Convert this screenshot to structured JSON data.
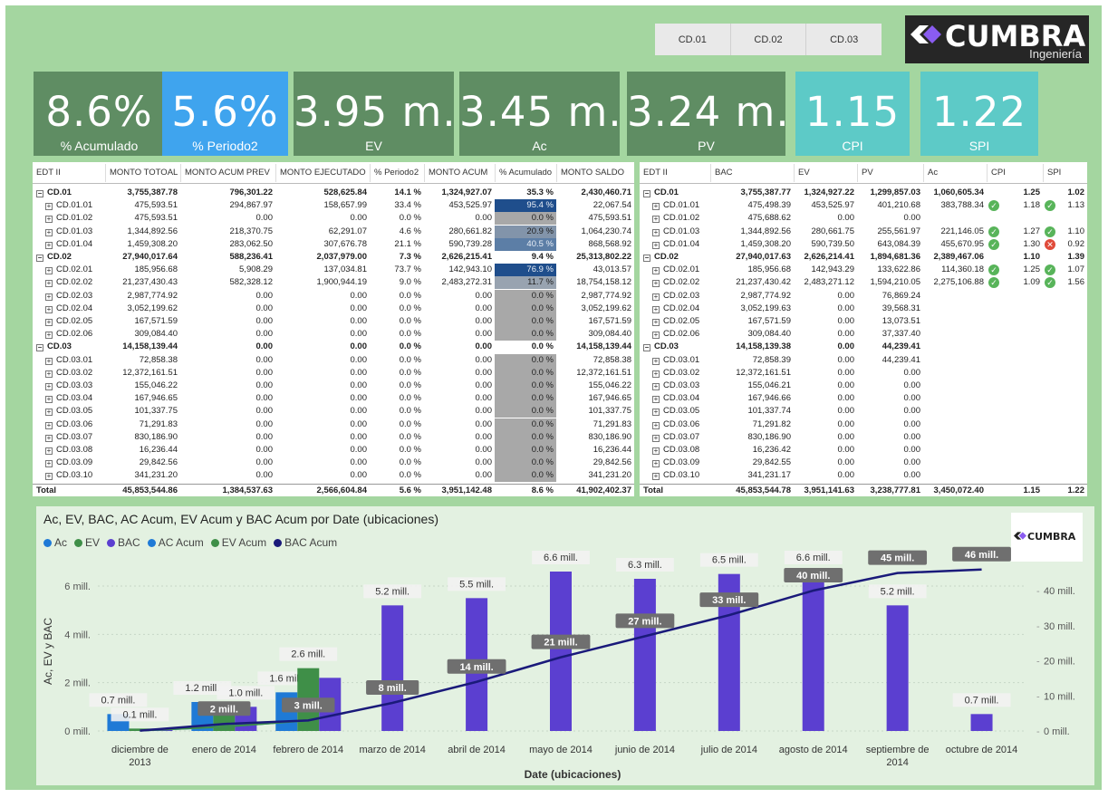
{
  "slicer": [
    "CD.01",
    "CD.02",
    "CD.03"
  ],
  "logo": {
    "name": "CUMBRA",
    "sub": "Ingeniería",
    "mini": "CUMBRA"
  },
  "cards": [
    {
      "value": "8.6%",
      "label": "% Acumulado",
      "color": "#5f8d63"
    },
    {
      "value": "5.6%",
      "label": "% Periodo2",
      "color": "#3fa4ee"
    },
    {
      "value": "3.95 m...",
      "label": "EV",
      "color": "#5f8d63"
    },
    {
      "value": "3.45 m...",
      "label": "Ac",
      "color": "#5f8d63"
    },
    {
      "value": "3.24 m...",
      "label": "PV",
      "color": "#5f8d63"
    },
    {
      "value": "1.15",
      "label": "CPI",
      "color": "#5dcac7"
    },
    {
      "value": "1.22",
      "label": "SPI",
      "color": "#5dcac7"
    }
  ],
  "table1": {
    "headers": [
      "EDT II",
      "MONTO TOTOAL",
      "MONTO ACUM PREV",
      "MONTO EJECUTADO",
      "% Periodo2",
      "MONTO ACUM",
      "% Acumulado",
      "MONTO SALDO"
    ],
    "rows": [
      {
        "level": 0,
        "expand": "−",
        "cells": [
          "CD.01",
          "3,755,387.78",
          "796,301.22",
          "528,625.84",
          "14.1 %",
          "1,324,927.07",
          "35.3 %",
          "2,430,460.71"
        ],
        "pct": 35.3
      },
      {
        "level": 1,
        "expand": "+",
        "cells": [
          "CD.01.01",
          "475,593.51",
          "294,867.97",
          "158,657.99",
          "33.4 %",
          "453,525.97",
          "95.4 %",
          "22,067.54"
        ],
        "pct": 95.4
      },
      {
        "level": 1,
        "expand": "+",
        "cells": [
          "CD.01.02",
          "475,593.51",
          "0.00",
          "0.00",
          "0.0 %",
          "0.00",
          "0.0 %",
          "475,593.51"
        ],
        "pct": 0
      },
      {
        "level": 1,
        "expand": "+",
        "cells": [
          "CD.01.03",
          "1,344,892.56",
          "218,370.75",
          "62,291.07",
          "4.6 %",
          "280,661.82",
          "20.9 %",
          "1,064,230.74"
        ],
        "pct": 20.9
      },
      {
        "level": 1,
        "expand": "+",
        "cells": [
          "CD.01.04",
          "1,459,308.20",
          "283,062.50",
          "307,676.78",
          "21.1 %",
          "590,739.28",
          "40.5 %",
          "868,568.92"
        ],
        "pct": 40.5
      },
      {
        "level": 0,
        "expand": "−",
        "cells": [
          "CD.02",
          "27,940,017.64",
          "588,236.41",
          "2,037,979.00",
          "7.3 %",
          "2,626,215.41",
          "9.4 %",
          "25,313,802.22"
        ],
        "pct": 9.4
      },
      {
        "level": 1,
        "expand": "+",
        "cells": [
          "CD.02.01",
          "185,956.68",
          "5,908.29",
          "137,034.81",
          "73.7 %",
          "142,943.10",
          "76.9 %",
          "43,013.57"
        ],
        "pct": 76.9
      },
      {
        "level": 1,
        "expand": "+",
        "cells": [
          "CD.02.02",
          "21,237,430.43",
          "582,328.12",
          "1,900,944.19",
          "9.0 %",
          "2,483,272.31",
          "11.7 %",
          "18,754,158.12"
        ],
        "pct": 11.7
      },
      {
        "level": 1,
        "expand": "+",
        "cells": [
          "CD.02.03",
          "2,987,774.92",
          "0.00",
          "0.00",
          "0.0 %",
          "0.00",
          "0.0 %",
          "2,987,774.92"
        ],
        "pct": 0
      },
      {
        "level": 1,
        "expand": "+",
        "cells": [
          "CD.02.04",
          "3,052,199.62",
          "0.00",
          "0.00",
          "0.0 %",
          "0.00",
          "0.0 %",
          "3,052,199.62"
        ],
        "pct": 0
      },
      {
        "level": 1,
        "expand": "+",
        "cells": [
          "CD.02.05",
          "167,571.59",
          "0.00",
          "0.00",
          "0.0 %",
          "0.00",
          "0.0 %",
          "167,571.59"
        ],
        "pct": 0
      },
      {
        "level": 1,
        "expand": "+",
        "cells": [
          "CD.02.06",
          "309,084.40",
          "0.00",
          "0.00",
          "0.0 %",
          "0.00",
          "0.0 %",
          "309,084.40"
        ],
        "pct": 0
      },
      {
        "level": 0,
        "expand": "−",
        "cells": [
          "CD.03",
          "14,158,139.44",
          "0.00",
          "0.00",
          "0.0 %",
          "0.00",
          "0.0 %",
          "14,158,139.44"
        ],
        "pct": 0
      },
      {
        "level": 1,
        "expand": "+",
        "cells": [
          "CD.03.01",
          "72,858.38",
          "0.00",
          "0.00",
          "0.0 %",
          "0.00",
          "0.0 %",
          "72,858.38"
        ],
        "pct": 0
      },
      {
        "level": 1,
        "expand": "+",
        "cells": [
          "CD.03.02",
          "12,372,161.51",
          "0.00",
          "0.00",
          "0.0 %",
          "0.00",
          "0.0 %",
          "12,372,161.51"
        ],
        "pct": 0
      },
      {
        "level": 1,
        "expand": "+",
        "cells": [
          "CD.03.03",
          "155,046.22",
          "0.00",
          "0.00",
          "0.0 %",
          "0.00",
          "0.0 %",
          "155,046.22"
        ],
        "pct": 0
      },
      {
        "level": 1,
        "expand": "+",
        "cells": [
          "CD.03.04",
          "167,946.65",
          "0.00",
          "0.00",
          "0.0 %",
          "0.00",
          "0.0 %",
          "167,946.65"
        ],
        "pct": 0
      },
      {
        "level": 1,
        "expand": "+",
        "cells": [
          "CD.03.05",
          "101,337.75",
          "0.00",
          "0.00",
          "0.0 %",
          "0.00",
          "0.0 %",
          "101,337.75"
        ],
        "pct": 0
      },
      {
        "level": 1,
        "expand": "+",
        "cells": [
          "CD.03.06",
          "71,291.83",
          "0.00",
          "0.00",
          "0.0 %",
          "0.00",
          "0.0 %",
          "71,291.83"
        ],
        "pct": 0
      },
      {
        "level": 1,
        "expand": "+",
        "cells": [
          "CD.03.07",
          "830,186.90",
          "0.00",
          "0.00",
          "0.0 %",
          "0.00",
          "0.0 %",
          "830,186.90"
        ],
        "pct": 0
      },
      {
        "level": 1,
        "expand": "+",
        "cells": [
          "CD.03.08",
          "16,236.44",
          "0.00",
          "0.00",
          "0.0 %",
          "0.00",
          "0.0 %",
          "16,236.44"
        ],
        "pct": 0
      },
      {
        "level": 1,
        "expand": "+",
        "cells": [
          "CD.03.09",
          "29,842.56",
          "0.00",
          "0.00",
          "0.0 %",
          "0.00",
          "0.0 %",
          "29,842.56"
        ],
        "pct": 0
      },
      {
        "level": 1,
        "expand": "+",
        "cells": [
          "CD.03.10",
          "341,231.20",
          "0.00",
          "0.00",
          "0.0 %",
          "0.00",
          "0.0 %",
          "341,231.20"
        ],
        "pct": 0
      }
    ],
    "total": [
      "Total",
      "45,853,544.86",
      "1,384,537.63",
      "2,566,604.84",
      "5.6 %",
      "3,951,142.48",
      "8.6 %",
      "41,902,402.37"
    ]
  },
  "table2": {
    "headers": [
      "EDT II",
      "BAC",
      "EV",
      "PV",
      "Ac",
      "CPI",
      "SPI"
    ],
    "rows": [
      {
        "level": 0,
        "expand": "−",
        "cells": [
          "CD.01",
          "3,755,387.77",
          "1,324,927.22",
          "1,299,857.03",
          "1,060,605.34",
          "1.25",
          "1.02"
        ],
        "cpi_icon": "",
        "spi_icon": ""
      },
      {
        "level": 1,
        "expand": "+",
        "cells": [
          "CD.01.01",
          "475,498.39",
          "453,525.97",
          "401,210.68",
          "383,788.34",
          "1.18",
          "1.13"
        ],
        "cpi_icon": "ok",
        "spi_icon": "ok"
      },
      {
        "level": 1,
        "expand": "+",
        "cells": [
          "CD.01.02",
          "475,688.62",
          "0.00",
          "0.00",
          "",
          "",
          ""
        ],
        "cpi_icon": "",
        "spi_icon": ""
      },
      {
        "level": 1,
        "expand": "+",
        "cells": [
          "CD.01.03",
          "1,344,892.56",
          "280,661.75",
          "255,561.97",
          "221,146.05",
          "1.27",
          "1.10"
        ],
        "cpi_icon": "ok",
        "spi_icon": "ok"
      },
      {
        "level": 1,
        "expand": "+",
        "cells": [
          "CD.01.04",
          "1,459,308.20",
          "590,739.50",
          "643,084.39",
          "455,670.95",
          "1.30",
          "0.92"
        ],
        "cpi_icon": "ok",
        "spi_icon": "bad"
      },
      {
        "level": 0,
        "expand": "−",
        "cells": [
          "CD.02",
          "27,940,017.63",
          "2,626,214.41",
          "1,894,681.36",
          "2,389,467.06",
          "1.10",
          "1.39"
        ],
        "cpi_icon": "",
        "spi_icon": ""
      },
      {
        "level": 1,
        "expand": "+",
        "cells": [
          "CD.02.01",
          "185,956.68",
          "142,943.29",
          "133,622.86",
          "114,360.18",
          "1.25",
          "1.07"
        ],
        "cpi_icon": "ok",
        "spi_icon": "ok"
      },
      {
        "level": 1,
        "expand": "+",
        "cells": [
          "CD.02.02",
          "21,237,430.42",
          "2,483,271.12",
          "1,594,210.05",
          "2,275,106.88",
          "1.09",
          "1.56"
        ],
        "cpi_icon": "ok",
        "spi_icon": "ok"
      },
      {
        "level": 1,
        "expand": "+",
        "cells": [
          "CD.02.03",
          "2,987,774.92",
          "0.00",
          "76,869.24",
          "",
          "",
          ""
        ],
        "cpi_icon": "",
        "spi_icon": ""
      },
      {
        "level": 1,
        "expand": "+",
        "cells": [
          "CD.02.04",
          "3,052,199.63",
          "0.00",
          "39,568.31",
          "",
          "",
          ""
        ],
        "cpi_icon": "",
        "spi_icon": ""
      },
      {
        "level": 1,
        "expand": "+",
        "cells": [
          "CD.02.05",
          "167,571.59",
          "0.00",
          "13,073.51",
          "",
          "",
          ""
        ],
        "cpi_icon": "",
        "spi_icon": ""
      },
      {
        "level": 1,
        "expand": "+",
        "cells": [
          "CD.02.06",
          "309,084.40",
          "0.00",
          "37,337.40",
          "",
          "",
          ""
        ],
        "cpi_icon": "",
        "spi_icon": ""
      },
      {
        "level": 0,
        "expand": "−",
        "cells": [
          "CD.03",
          "14,158,139.38",
          "0.00",
          "44,239.41",
          "",
          "",
          ""
        ],
        "cpi_icon": "",
        "spi_icon": ""
      },
      {
        "level": 1,
        "expand": "+",
        "cells": [
          "CD.03.01",
          "72,858.39",
          "0.00",
          "44,239.41",
          "",
          "",
          ""
        ],
        "cpi_icon": "",
        "spi_icon": ""
      },
      {
        "level": 1,
        "expand": "+",
        "cells": [
          "CD.03.02",
          "12,372,161.51",
          "0.00",
          "0.00",
          "",
          "",
          ""
        ],
        "cpi_icon": "",
        "spi_icon": ""
      },
      {
        "level": 1,
        "expand": "+",
        "cells": [
          "CD.03.03",
          "155,046.21",
          "0.00",
          "0.00",
          "",
          "",
          ""
        ],
        "cpi_icon": "",
        "spi_icon": ""
      },
      {
        "level": 1,
        "expand": "+",
        "cells": [
          "CD.03.04",
          "167,946.66",
          "0.00",
          "0.00",
          "",
          "",
          ""
        ],
        "cpi_icon": "",
        "spi_icon": ""
      },
      {
        "level": 1,
        "expand": "+",
        "cells": [
          "CD.03.05",
          "101,337.74",
          "0.00",
          "0.00",
          "",
          "",
          ""
        ],
        "cpi_icon": "",
        "spi_icon": ""
      },
      {
        "level": 1,
        "expand": "+",
        "cells": [
          "CD.03.06",
          "71,291.82",
          "0.00",
          "0.00",
          "",
          "",
          ""
        ],
        "cpi_icon": "",
        "spi_icon": ""
      },
      {
        "level": 1,
        "expand": "+",
        "cells": [
          "CD.03.07",
          "830,186.90",
          "0.00",
          "0.00",
          "",
          "",
          ""
        ],
        "cpi_icon": "",
        "spi_icon": ""
      },
      {
        "level": 1,
        "expand": "+",
        "cells": [
          "CD.03.08",
          "16,236.42",
          "0.00",
          "0.00",
          "",
          "",
          ""
        ],
        "cpi_icon": "",
        "spi_icon": ""
      },
      {
        "level": 1,
        "expand": "+",
        "cells": [
          "CD.03.09",
          "29,842.55",
          "0.00",
          "0.00",
          "",
          "",
          ""
        ],
        "cpi_icon": "",
        "spi_icon": ""
      },
      {
        "level": 1,
        "expand": "+",
        "cells": [
          "CD.03.10",
          "341,231.17",
          "0.00",
          "0.00",
          "",
          "",
          ""
        ],
        "cpi_icon": "",
        "spi_icon": ""
      }
    ],
    "total": [
      "Total",
      "45,853,544.78",
      "3,951,141.63",
      "3,238,777.81",
      "3,450,072.40",
      "1.15",
      "1.22"
    ]
  },
  "chart_data": {
    "type": "bar",
    "title": "Ac, EV, BAC, AC Acum, EV Acum y BAC Acum por Date (ubicaciones)",
    "xlabel": "Date (ubicaciones)",
    "ylabel": "Ac, EV y BAC",
    "legend_position": "top-left",
    "categories": [
      "diciembre de 2013",
      "enero de 2014",
      "febrero de 2014",
      "marzo de 2014",
      "abril de 2014",
      "mayo de 2014",
      "junio de 2014",
      "julio de 2014",
      "agosto de 2014",
      "septiembre de 2014",
      "octubre de 2014"
    ],
    "y_ticks": [
      "0 mill.",
      "2 mill.",
      "4 mill.",
      "6 mill."
    ],
    "y2_ticks": [
      "0 mill.",
      "10 mill.",
      "20 mill.",
      "30 mill.",
      "40 mill."
    ],
    "ylim": [
      0,
      6.6
    ],
    "y2lim": [
      0,
      46
    ],
    "series": [
      {
        "name": "Ac",
        "color": "#1f7ad6",
        "axis": "left",
        "kind": "bar",
        "values": [
          0.7,
          1.2,
          1.6,
          null,
          null,
          null,
          null,
          null,
          null,
          null,
          null
        ],
        "labels": [
          "0.7 mill.",
          "1.2 mill.",
          "1.6 mill.",
          "",
          "",
          "",
          "",
          "",
          "",
          "",
          ""
        ]
      },
      {
        "name": "EV",
        "color": "#3f8f48",
        "axis": "left",
        "kind": "bar",
        "values": [
          0.1,
          1.2,
          2.6,
          null,
          null,
          null,
          null,
          null,
          null,
          null,
          null
        ],
        "labels": [
          "0.1 mill.",
          "",
          "2.6 mill.",
          "",
          "",
          "",
          "",
          "",
          "",
          "",
          ""
        ]
      },
      {
        "name": "BAC",
        "color": "#5b3fd0",
        "axis": "left",
        "kind": "bar",
        "values": [
          0.1,
          1.0,
          2.2,
          5.2,
          5.5,
          6.6,
          6.3,
          6.5,
          6.6,
          5.2,
          0.7
        ],
        "labels": [
          "",
          "1.0 mill.",
          "",
          "5.2 mill.",
          "5.5 mill.",
          "6.6 mill.",
          "6.3 mill.",
          "6.5 mill.",
          "6.6 mill.",
          "5.2 mill.",
          "0.7 mill."
        ]
      },
      {
        "name": "AC Acum",
        "color": "#1f7ad6",
        "axis": "right",
        "kind": "line",
        "values": [
          0.1,
          1.2,
          3.0,
          null,
          null,
          null,
          null,
          null,
          null,
          null,
          null
        ],
        "labels": [
          "",
          "",
          "",
          "",
          "",
          "",
          "",
          "",
          "",
          "",
          ""
        ]
      },
      {
        "name": "EV Acum",
        "color": "#3f8f48",
        "axis": "right",
        "kind": "line",
        "values": [
          0.1,
          1.2,
          3.0,
          null,
          null,
          null,
          null,
          null,
          null,
          null,
          null
        ],
        "labels": [
          "",
          "",
          "3 mill.",
          "",
          "",
          "",
          "",
          "",
          "",
          "",
          ""
        ]
      },
      {
        "name": "BAC Acum",
        "color": "#1a1a7a",
        "axis": "right",
        "kind": "line",
        "values": [
          0.1,
          2.0,
          3.0,
          8.0,
          14.0,
          21.0,
          27.0,
          33.0,
          40.0,
          45.0,
          46.0
        ],
        "labels": [
          "",
          "2 mill.",
          "3 mill.",
          "8 mill.",
          "14 mill.",
          "21 mill.",
          "27 mill.",
          "33 mill.",
          "40 mill.",
          "45 mill.",
          "46 mill."
        ]
      }
    ]
  }
}
